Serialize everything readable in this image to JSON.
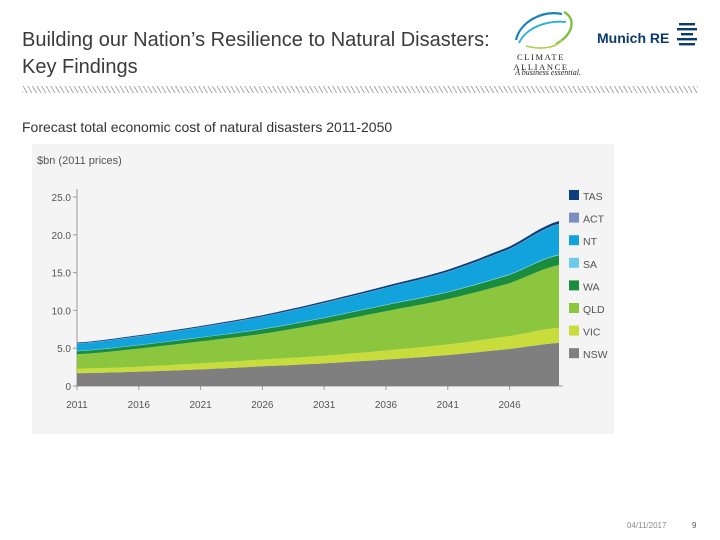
{
  "slide": {
    "title_line1": "Building our Nation’s Resilience to Natural Disasters:",
    "title_line2": "Key Findings",
    "subtitle": "Forecast total economic cost of natural disasters 2011-2050",
    "date": "04/11/2017",
    "page_number": "9"
  },
  "logos": {
    "climate_alliance": "CLIMATE ALLIANCE",
    "climate_alliance_tagline": "A business essential.",
    "munich_re": "Munich RE"
  },
  "colors": {
    "TAS": "#0b3f7d",
    "ACT": "#7c8fc2",
    "NT": "#12a3dd",
    "SA": "#6ccbeb",
    "WA": "#1a8c3e",
    "QLD": "#8cc63f",
    "VIC": "#c8dc3c",
    "NSW": "#7f7f7f"
  },
  "chart_data": {
    "type": "area",
    "stacked": true,
    "title": "Forecast total economic cost of natural disasters 2011-2050",
    "ylabel": "$bn (2011 prices)",
    "xlabel": "",
    "ylim": [
      0,
      25
    ],
    "yticks": [
      "0",
      "5.0",
      "10.0",
      "15.0",
      "20.0",
      "25.0"
    ],
    "ytick_values": [
      0,
      5,
      10,
      15,
      20,
      25
    ],
    "x": [
      2011,
      2016,
      2021,
      2026,
      2031,
      2036,
      2041,
      2046,
      2050
    ],
    "xticks": [
      "2011",
      "2016",
      "2021",
      "2026",
      "2031",
      "2036",
      "2041",
      "2046"
    ],
    "xlim": [
      2011,
      2050
    ],
    "legend_position": "right",
    "legend": [
      "TAS",
      "ACT",
      "NT",
      "SA",
      "WA",
      "QLD",
      "VIC",
      "NSW"
    ],
    "series": [
      {
        "name": "NSW",
        "values": [
          1.7,
          1.9,
          2.2,
          2.6,
          3.0,
          3.5,
          4.1,
          4.9,
          5.7
        ]
      },
      {
        "name": "VIC",
        "values": [
          0.6,
          0.65,
          0.8,
          0.9,
          1.0,
          1.2,
          1.4,
          1.7,
          2.0
        ]
      },
      {
        "name": "QLD",
        "values": [
          1.9,
          2.4,
          2.9,
          3.4,
          4.3,
          5.2,
          6.0,
          7.0,
          8.3
        ]
      },
      {
        "name": "WA",
        "values": [
          0.4,
          0.45,
          0.5,
          0.6,
          0.7,
          0.8,
          0.9,
          1.1,
          1.3
        ]
      },
      {
        "name": "SA",
        "values": [
          0.05,
          0.05,
          0.05,
          0.06,
          0.06,
          0.07,
          0.08,
          0.09,
          0.1
        ]
      },
      {
        "name": "NT",
        "values": [
          0.95,
          1.1,
          1.3,
          1.6,
          1.9,
          2.2,
          2.6,
          3.3,
          4.0
        ]
      },
      {
        "name": "ACT",
        "values": [
          0.05,
          0.05,
          0.05,
          0.05,
          0.05,
          0.05,
          0.05,
          0.06,
          0.07
        ]
      },
      {
        "name": "TAS",
        "values": [
          0.1,
          0.12,
          0.14,
          0.16,
          0.19,
          0.22,
          0.26,
          0.3,
          0.35
        ]
      }
    ]
  }
}
